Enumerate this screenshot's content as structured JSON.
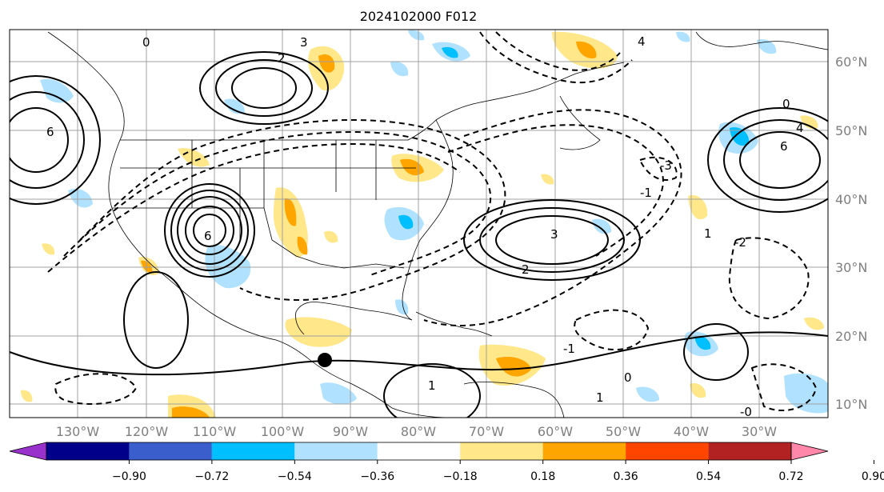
{
  "title": "2024102000 F012",
  "lon_labels": [
    "130°W",
    "120°W",
    "110°W",
    "100°W",
    "90°W",
    "80°W",
    "70°W",
    "60°W",
    "50°W",
    "40°W",
    "30°W"
  ],
  "lat_labels": [
    "60°N",
    "50°N",
    "40°N",
    "30°N",
    "20°N",
    "10°N"
  ],
  "colorbar": {
    "ticks": [
      "−0.90",
      "−0.72",
      "−0.54",
      "−0.36",
      "−0.18",
      "0.18",
      "0.36",
      "0.54",
      "0.72",
      "0.90"
    ],
    "colors": [
      "#9932cc",
      "#00008b",
      "#3a5fcd",
      "#00bfff",
      "#b0e2ff",
      "#ffffff",
      "#ffe78a",
      "#ffa500",
      "#ff4500",
      "#b22222",
      "#ff88aa"
    ]
  },
  "contour_labels": [
    {
      "text": "0"
    },
    {
      "text": "2"
    },
    {
      "text": "3"
    },
    {
      "text": "4"
    },
    {
      "text": "-0"
    },
    {
      "text": "1"
    },
    {
      "text": "-3"
    },
    {
      "text": "6"
    },
    {
      "text": "-2"
    },
    {
      "text": "-1"
    },
    {
      "text": "2"
    },
    {
      "text": "0"
    },
    {
      "text": "1"
    },
    {
      "text": "-1"
    },
    {
      "text": "3"
    },
    {
      "text": "6"
    },
    {
      "text": "0"
    },
    {
      "text": "1"
    },
    {
      "text": "4"
    },
    {
      "text": "6"
    }
  ]
}
